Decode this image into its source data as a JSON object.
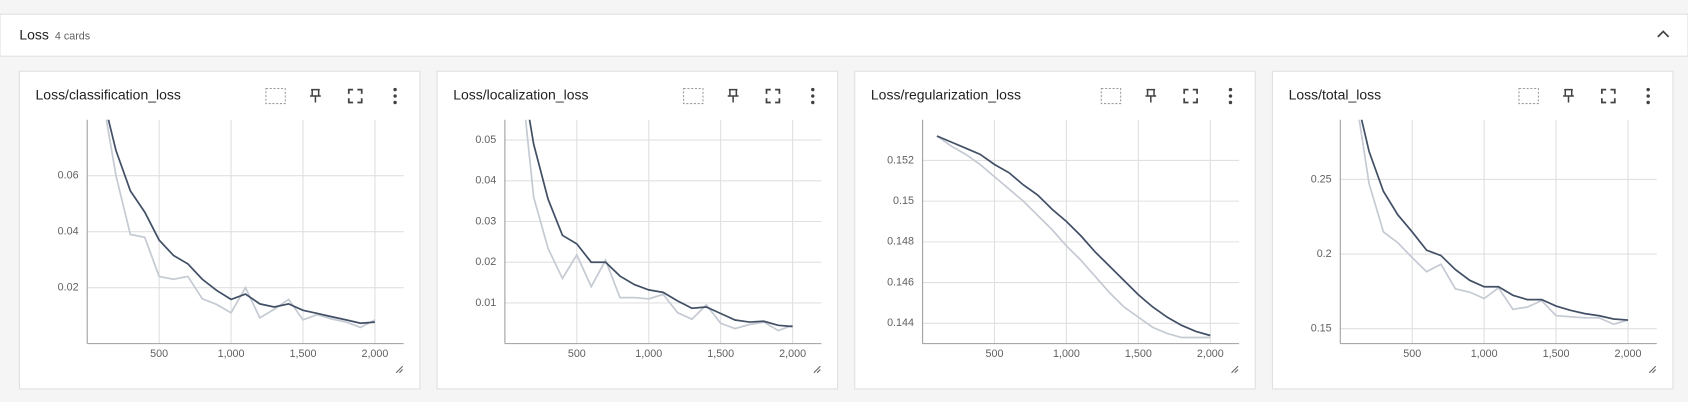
{
  "header": {
    "title": "Loss",
    "count": "4 cards"
  },
  "chart_data": [
    {
      "type": "line",
      "title": "Loss/classification_loss",
      "x": [
        100,
        200,
        300,
        400,
        500,
        600,
        700,
        800,
        900,
        1000,
        1100,
        1200,
        1300,
        1400,
        1500,
        1600,
        1700,
        1800,
        1900,
        2000
      ],
      "xlim": [
        0,
        2200
      ],
      "xticks": [
        500,
        {
          "value": 1000,
          "label": "1,000"
        },
        {
          "value": 1500,
          "label": "1,500"
        },
        {
          "value": 2000,
          "label": "2,000"
        }
      ],
      "ylim": [
        0,
        0.08
      ],
      "yticks": [
        0.02,
        0.04,
        0.06
      ],
      "grid": true,
      "series": [
        {
          "color": "#c5cad3",
          "values": [
            0.09,
            0.06,
            0.039,
            0.038,
            0.024,
            0.023,
            0.024,
            0.016,
            0.014,
            0.011,
            0.02,
            0.0092,
            0.0123,
            0.0158,
            0.0085,
            0.0104,
            0.0088,
            0.0077,
            0.0058,
            0.0085
          ]
        },
        {
          "color": "#425066",
          "values": [
            0.09,
            0.069,
            0.0546,
            0.047,
            0.037,
            0.0315,
            0.0285,
            0.023,
            0.019,
            0.0158,
            0.0177,
            0.0142,
            0.0131,
            0.0142,
            0.0119,
            0.0108,
            0.0096,
            0.0085,
            0.0073,
            0.0077
          ]
        }
      ]
    },
    {
      "type": "line",
      "title": "Loss/localization_loss",
      "x": [
        100,
        200,
        300,
        400,
        500,
        600,
        700,
        800,
        900,
        1000,
        1100,
        1200,
        1300,
        1400,
        1500,
        1600,
        1700,
        1800,
        1900,
        2000
      ],
      "xlim": [
        0,
        2200
      ],
      "xticks": [
        500,
        {
          "value": 1000,
          "label": "1,000"
        },
        {
          "value": 1500,
          "label": "1,500"
        },
        {
          "value": 2000,
          "label": "2,000"
        }
      ],
      "ylim": [
        0,
        0.055
      ],
      "yticks": [
        0.01,
        0.02,
        0.03,
        0.04,
        0.05
      ],
      "grid": true,
      "series": [
        {
          "color": "#c5cad3",
          "values": [
            0.07,
            0.036,
            0.0234,
            0.016,
            0.0218,
            0.014,
            0.0205,
            0.0113,
            0.0113,
            0.011,
            0.0121,
            0.0076,
            0.006,
            0.0095,
            0.005,
            0.0037,
            0.0047,
            0.0053,
            0.0032,
            0.0045
          ]
        },
        {
          "color": "#425066",
          "values": [
            0.07,
            0.049,
            0.0355,
            0.0266,
            0.0245,
            0.02,
            0.02,
            0.0166,
            0.0145,
            0.0132,
            0.0126,
            0.0105,
            0.0087,
            0.009,
            0.0074,
            0.0058,
            0.0053,
            0.0055,
            0.0045,
            0.0042
          ]
        }
      ]
    },
    {
      "type": "line",
      "title": "Loss/regularization_loss",
      "x": [
        100,
        200,
        300,
        400,
        500,
        600,
        700,
        800,
        900,
        1000,
        1100,
        1200,
        1300,
        1400,
        1500,
        1600,
        1700,
        1800,
        1900,
        2000
      ],
      "xlim": [
        0,
        2200
      ],
      "xticks": [
        500,
        {
          "value": 1000,
          "label": "1,000"
        },
        {
          "value": 1500,
          "label": "1,500"
        },
        {
          "value": 2000,
          "label": "2,000"
        }
      ],
      "ylim": [
        0.143,
        0.154
      ],
      "yticks": [
        0.144,
        0.146,
        0.148,
        0.15,
        0.152
      ],
      "grid": true,
      "series": [
        {
          "color": "#c5cad3",
          "values": [
            0.1532,
            0.1527,
            0.1523,
            0.1518,
            0.1512,
            0.1506,
            0.15,
            0.1493,
            0.1486,
            0.1478,
            0.1471,
            0.1463,
            0.1455,
            0.1448,
            0.1443,
            0.1438,
            0.1435,
            0.1433,
            0.1433,
            0.1433
          ]
        },
        {
          "color": "#425066",
          "values": [
            0.1532,
            0.1529,
            0.1526,
            0.1523,
            0.1518,
            0.1514,
            0.1508,
            0.1503,
            0.1496,
            0.149,
            0.1483,
            0.1475,
            0.1468,
            0.1461,
            0.1454,
            0.1448,
            0.1443,
            0.1439,
            0.1436,
            0.1434
          ]
        }
      ]
    },
    {
      "type": "line",
      "title": "Loss/total_loss",
      "x": [
        100,
        200,
        300,
        400,
        500,
        600,
        700,
        800,
        900,
        1000,
        1100,
        1200,
        1300,
        1400,
        1500,
        1600,
        1700,
        1800,
        1900,
        2000
      ],
      "xlim": [
        0,
        2200
      ],
      "xticks": [
        500,
        {
          "value": 1000,
          "label": "1,000"
        },
        {
          "value": 1500,
          "label": "1,500"
        },
        {
          "value": 2000,
          "label": "2,000"
        }
      ],
      "ylim": [
        0.14,
        0.29
      ],
      "yticks": [
        0.15,
        0.2,
        0.25
      ],
      "grid": true,
      "series": [
        {
          "color": "#c5cad3",
          "values": [
            0.31,
            0.2472,
            0.2148,
            0.2076,
            0.1976,
            0.1882,
            0.1932,
            0.1767,
            0.1745,
            0.1702,
            0.1774,
            0.163,
            0.1645,
            0.1688,
            0.1587,
            0.158,
            0.1573,
            0.1573,
            0.153,
            0.1558
          ]
        },
        {
          "color": "#425066",
          "values": [
            0.31,
            0.2688,
            0.242,
            0.2263,
            0.2148,
            0.2026,
            0.199,
            0.1896,
            0.1824,
            0.1781,
            0.1781,
            0.1724,
            0.1695,
            0.1695,
            0.1652,
            0.1623,
            0.1601,
            0.1587,
            0.1565,
            0.1558
          ]
        }
      ]
    }
  ]
}
